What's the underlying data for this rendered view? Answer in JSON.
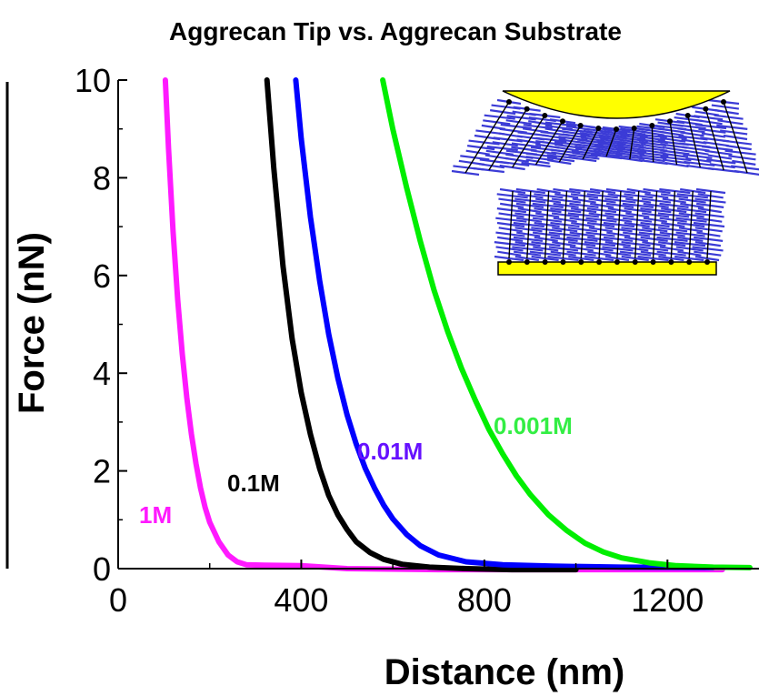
{
  "chart_data": {
    "type": "line",
    "title": "Aggrecan Tip vs. Aggrecan Substrate",
    "xlabel": "Distance (nm)",
    "ylabel": "Force (nN)",
    "xlim": [
      0,
      1400
    ],
    "ylim": [
      0,
      10
    ],
    "x_ticks": [
      "0",
      "400",
      "800",
      "1200"
    ],
    "y_ticks": [
      "0",
      "2",
      "4",
      "6",
      "8",
      "10"
    ],
    "grid": false,
    "series": [
      {
        "name": "1M",
        "color": "#ff1aff",
        "x": [
          103,
          110,
          120,
          130,
          140,
          150,
          160,
          170,
          180,
          190,
          200,
          220,
          240,
          260,
          280,
          320,
          400,
          500,
          700,
          1000,
          1320
        ],
        "y": [
          10.0,
          8.6,
          6.9,
          5.5,
          4.4,
          3.5,
          2.75,
          2.15,
          1.65,
          1.25,
          0.95,
          0.55,
          0.28,
          0.14,
          0.08,
          0.07,
          0.06,
          0.0,
          -0.02,
          -0.02,
          -0.02
        ]
      },
      {
        "name": "0.1M",
        "color": "#000000",
        "x": [
          325,
          340,
          360,
          380,
          400,
          420,
          440,
          460,
          480,
          500,
          520,
          550,
          580,
          620,
          680,
          760,
          860,
          1000
        ],
        "y": [
          10.0,
          8.2,
          6.2,
          4.7,
          3.6,
          2.75,
          2.05,
          1.5,
          1.1,
          0.8,
          0.55,
          0.33,
          0.19,
          0.09,
          0.03,
          0.0,
          -0.02,
          -0.02
        ]
      },
      {
        "name": "0.01M",
        "color": "#0000ff",
        "x": [
          388,
          400,
          420,
          440,
          460,
          480,
          500,
          520,
          540,
          560,
          580,
          600,
          630,
          660,
          700,
          760,
          840,
          950,
          1100,
          1300
        ],
        "y": [
          10.0,
          8.8,
          7.2,
          5.9,
          4.8,
          3.9,
          3.15,
          2.55,
          2.05,
          1.65,
          1.3,
          1.02,
          0.7,
          0.47,
          0.28,
          0.14,
          0.08,
          0.05,
          0.03,
          0.02
        ]
      },
      {
        "name": "0.001M",
        "color": "#00ee00",
        "x": [
          578,
          600,
          630,
          660,
          690,
          720,
          750,
          780,
          810,
          840,
          870,
          900,
          940,
          980,
          1020,
          1060,
          1100,
          1160,
          1220,
          1300,
          1380
        ],
        "y": [
          10.0,
          9.0,
          7.8,
          6.7,
          5.7,
          4.85,
          4.1,
          3.45,
          2.85,
          2.35,
          1.9,
          1.52,
          1.1,
          0.78,
          0.52,
          0.34,
          0.22,
          0.12,
          0.06,
          0.03,
          0.02
        ]
      }
    ]
  }
}
